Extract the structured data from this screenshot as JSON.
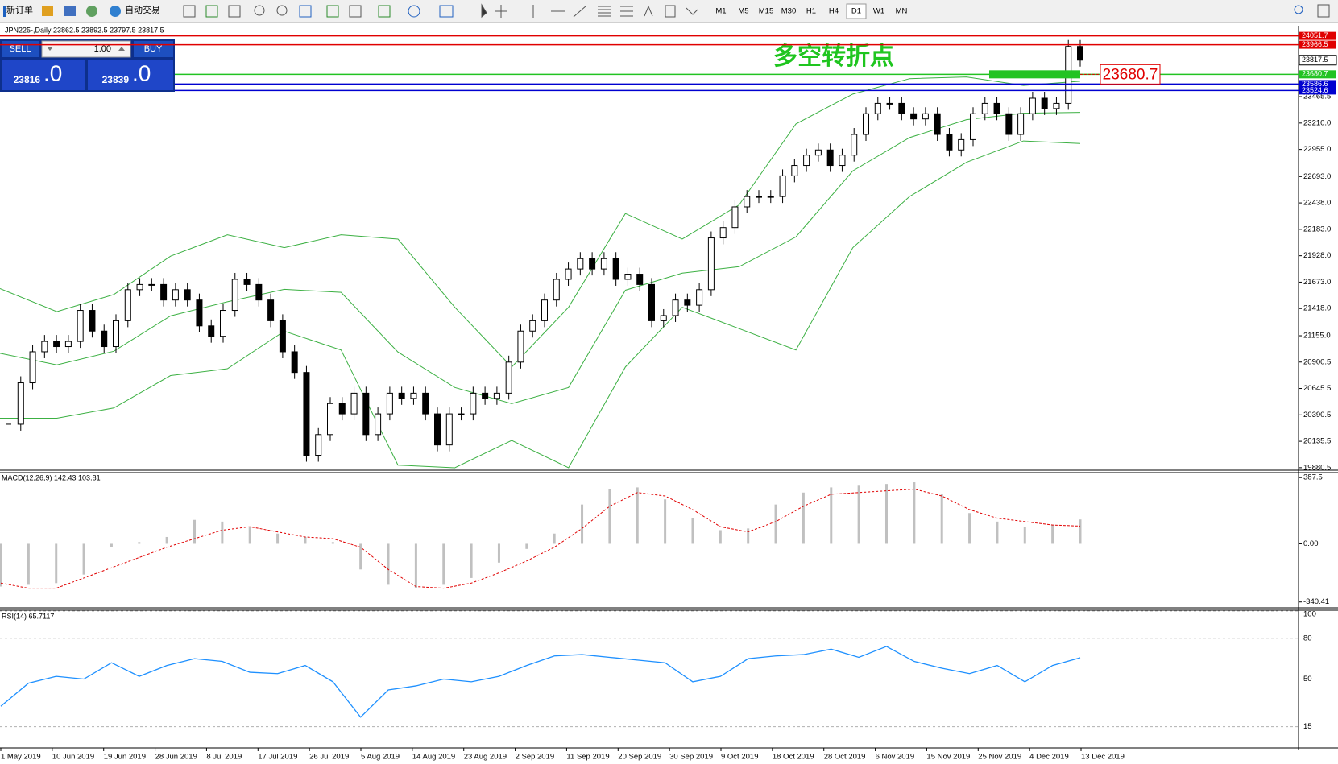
{
  "toolbar": {
    "new_order": "新订单",
    "auto_trading": "自动交易",
    "timeframes": [
      "M1",
      "M5",
      "M15",
      "M30",
      "H1",
      "H4",
      "D1",
      "W1",
      "MN"
    ],
    "active_timeframe": 6
  },
  "trade_panel": {
    "sell": "SELL",
    "lot": "1.00",
    "buy": "BUY",
    "bid_big": "23816",
    "bid_small": ".0",
    "ask_big": "23839",
    "ask_small": ".0"
  },
  "chart": {
    "type": "candlestick",
    "header": "JPN225-,Daily  23862.5 23892.5 23797.5 23817.5",
    "closes": [
      20300,
      20700,
      21000,
      21100,
      21050,
      21100,
      21400,
      21200,
      21050,
      21300,
      21600,
      21650,
      21650,
      21500,
      21600,
      21500,
      21250,
      21150,
      21400,
      21700,
      21650,
      21500,
      21300,
      21000,
      20800,
      20000,
      20200,
      20500,
      20400,
      20600,
      20200,
      20400,
      20600,
      20550,
      20600,
      20400,
      20100,
      20400,
      20400,
      20600,
      20550,
      20600,
      20900,
      21200,
      21300,
      21500,
      21700,
      21800,
      21900,
      21800,
      21900,
      21700,
      21750,
      21650,
      21300,
      21350,
      21500,
      21450,
      21600,
      22100,
      22200,
      22400,
      22500,
      22500,
      22500,
      22700,
      22800,
      22900,
      22950,
      22800,
      22900,
      23100,
      23300,
      23400,
      23400,
      23300,
      23250,
      23300,
      23100,
      22950,
      23050,
      23300,
      23400,
      23300,
      23100,
      23300,
      23450,
      23350,
      23400,
      23950,
      23817.5
    ],
    "ylim": [
      19864,
      24150
    ],
    "yticks": [
      23465.5,
      {
        "value": 23210,
        "label": "23210.0"
      },
      {
        "value": 22955,
        "label": "22955.0"
      },
      {
        "value": 22693,
        "label": "22693.0"
      },
      {
        "value": 22438,
        "label": "22438.0"
      },
      {
        "value": 22183,
        "label": "22183.0"
      },
      {
        "value": 21928,
        "label": "21928.0"
      },
      {
        "value": 21673,
        "label": "21673.0"
      },
      {
        "value": 21418,
        "label": "21418.0"
      },
      {
        "value": 21155,
        "label": "21155.0"
      },
      20900.5,
      20645.5,
      20390.5,
      20135.5,
      19880.5
    ],
    "current_price": 23817.5,
    "levels": [
      {
        "value": 24051.7,
        "color": "#e00000"
      },
      {
        "value": 23966.5,
        "color": "#e00000"
      },
      {
        "value": 23680.7,
        "color": "#22c322"
      },
      {
        "value": 23586.6,
        "color": "#0000d0"
      },
      {
        "value": 23524.6,
        "color": "#0000d0"
      }
    ],
    "annotation": "多空转折点",
    "dates": [
      "1 May 2019",
      "10 Jun 2019",
      "19 Jun 2019",
      "28 Jun 2019",
      "8 Jul 2019",
      "17 Jul 2019",
      "26 Jul 2019",
      "5 Aug 2019",
      "14 Aug 2019",
      "23 Aug 2019",
      "2 Sep 2019",
      "11 Sep 2019",
      "20 Sep 2019",
      "30 Sep 2019",
      "9 Oct 2019",
      "18 Oct 2019",
      "28 Oct 2019",
      "6 Nov 2019",
      "15 Nov 2019",
      "25 Nov 2019",
      "4 Dec 2019",
      "13 Dec 2019"
    ],
    "bands": {
      "color": "#3cb043",
      "upper": [
        21611,
        21388,
        21553,
        21924,
        22130,
        22006,
        22130,
        22089,
        21430,
        20853,
        21430,
        22336,
        22089,
        22419,
        23202,
        23490,
        23639,
        23655,
        23573,
        23614
      ],
      "middle": [
        20985,
        20873,
        21005,
        21347,
        21483,
        21603,
        21574,
        20997,
        20655,
        20499,
        20655,
        21595,
        21760,
        21822,
        22110,
        22748,
        23070,
        23243,
        23305,
        23313
      ],
      "lower": [
        20358,
        20358,
        20457,
        20770,
        20836,
        21199,
        21017,
        19905,
        19880,
        20144,
        19880,
        20853,
        21430,
        21224,
        21017,
        22006,
        22501,
        22831,
        23037,
        23012
      ]
    },
    "macd": {
      "label": "MACD(12,26,9) 142.43 103.81",
      "ylim": [
        -370,
        412
      ],
      "yticks": [
        387.5,
        {
          "value": 0,
          "label": "0.00"
        },
        -340.41
      ],
      "histogram": [
        -250,
        -240,
        -230,
        -180,
        -20,
        10,
        40,
        140,
        130,
        100,
        60,
        40,
        10,
        -150,
        -240,
        -260,
        -240,
        -200,
        -110,
        -30,
        60,
        230,
        320,
        330,
        260,
        150,
        80,
        90,
        230,
        300,
        330,
        340,
        350,
        360,
        290,
        180,
        130,
        100,
        110,
        142.43
      ],
      "signal": [
        -230,
        -260,
        -260,
        -200,
        -140,
        -80,
        -20,
        30,
        80,
        100,
        70,
        40,
        30,
        -20,
        -150,
        -250,
        -260,
        -230,
        -170,
        -100,
        -20,
        90,
        220,
        300,
        280,
        200,
        100,
        70,
        130,
        220,
        290,
        300,
        310,
        320,
        280,
        200,
        150,
        130,
        110,
        103.81
      ],
      "histogram_color": "#c0c0c0",
      "signal_color": "#e00000"
    },
    "rsi": {
      "label": "RSI(14) 65.7117",
      "ylim": [
        0,
        100
      ],
      "yticks": [
        100,
        80,
        50,
        15
      ],
      "values": [
        30,
        47,
        52,
        50,
        62,
        52,
        60,
        65,
        63,
        55,
        54,
        60,
        48,
        22,
        42,
        45,
        50,
        48,
        52,
        60,
        67,
        68,
        66,
        64,
        62,
        48,
        52,
        65,
        67,
        68,
        72,
        66,
        74,
        63,
        58,
        54,
        60,
        48,
        60,
        65.7117
      ],
      "color": "#1e90ff"
    }
  }
}
